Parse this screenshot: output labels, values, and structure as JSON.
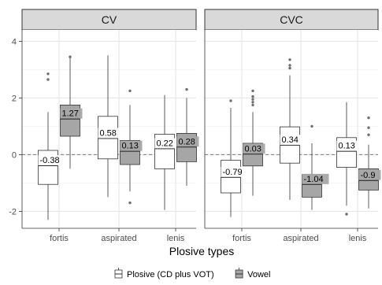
{
  "chart_data": {
    "type": "boxplot",
    "xlabel": "Plosive types",
    "ylabel": "",
    "ylim": [
      -2.6,
      4.4
    ],
    "y_ticks": [
      -2,
      0,
      2,
      4
    ],
    "reference_line_y": 0,
    "grid": true,
    "legend_position": "bottom",
    "categories": [
      "fortis",
      "aspirated",
      "lenis"
    ],
    "legend": [
      {
        "name": "Plosive (CD plus VOT)",
        "fill": "#ffffff"
      },
      {
        "name": "Vowel",
        "fill": "#a6a6a6"
      }
    ],
    "panels": [
      {
        "title": "CV",
        "groups": [
          {
            "category": "fortis",
            "boxes": [
              {
                "series": "Plosive (CD plus VOT)",
                "whisker_low": -2.3,
                "q1": -1.05,
                "median": -0.38,
                "q3": 0.15,
                "whisker_high": 1.5,
                "outliers": [
                  2.65,
                  2.85
                ],
                "label": "-0.38"
              },
              {
                "series": "Vowel",
                "whisker_low": -0.5,
                "q1": 0.65,
                "median": 1.27,
                "q3": 1.75,
                "whisker_high": 3.45,
                "outliers": [
                  3.45
                ],
                "label": "1.27"
              }
            ]
          },
          {
            "category": "aspirated",
            "boxes": [
              {
                "series": "Plosive (CD plus VOT)",
                "whisker_low": -1.5,
                "q1": -0.15,
                "median": 0.58,
                "q3": 1.35,
                "whisker_high": 3.5,
                "outliers": [],
                "label": "0.58"
              },
              {
                "series": "Vowel",
                "whisker_low": -1.3,
                "q1": -0.35,
                "median": 0.13,
                "q3": 0.5,
                "whisker_high": 1.75,
                "outliers": [
                  2.25,
                  -1.7
                ],
                "label": "0.13"
              }
            ]
          },
          {
            "category": "lenis",
            "boxes": [
              {
                "series": "Plosive (CD plus VOT)",
                "whisker_low": -1.95,
                "q1": -0.5,
                "median": 0.22,
                "q3": 0.72,
                "whisker_high": 2.1,
                "outliers": [],
                "label": "0.22"
              },
              {
                "series": "Vowel",
                "whisker_low": -1.1,
                "q1": -0.25,
                "median": 0.28,
                "q3": 0.75,
                "whisker_high": 2.0,
                "outliers": [
                  2.3
                ],
                "label": "0.28"
              }
            ]
          }
        ]
      },
      {
        "title": "CVC",
        "groups": [
          {
            "category": "fortis",
            "boxes": [
              {
                "series": "Plosive (CD plus VOT)",
                "whisker_low": -2.2,
                "q1": -1.35,
                "median": -0.79,
                "q3": -0.2,
                "whisker_high": 1.65,
                "outliers": [
                  1.9
                ],
                "label": "-0.79"
              },
              {
                "series": "Vowel",
                "whisker_low": -1.45,
                "q1": -0.4,
                "median": 0.03,
                "q3": 0.4,
                "whisker_high": 1.5,
                "outliers": [
                  1.75,
                  1.85,
                  1.95,
                  2.05,
                  2.25
                ],
                "label": "0.03"
              }
            ]
          },
          {
            "category": "aspirated",
            "boxes": [
              {
                "series": "Plosive (CD plus VOT)",
                "whisker_low": -1.6,
                "q1": -0.3,
                "median": 0.34,
                "q3": 0.98,
                "whisker_high": 2.8,
                "outliers": [
                  3.05,
                  3.15,
                  3.35
                ],
                "label": "0.34"
              },
              {
                "series": "Vowel",
                "whisker_low": -1.95,
                "q1": -1.5,
                "median": -1.04,
                "q3": -0.7,
                "whisker_high": 0.4,
                "outliers": [
                  1.0
                ],
                "label": "-1.04"
              }
            ]
          },
          {
            "category": "lenis",
            "boxes": [
              {
                "series": "Plosive (CD plus VOT)",
                "whisker_low": -1.8,
                "q1": -0.45,
                "median": 0.13,
                "q3": 0.6,
                "whisker_high": 1.85,
                "outliers": [
                  -2.1
                ],
                "label": "0.13"
              },
              {
                "series": "Vowel",
                "whisker_low": -1.9,
                "q1": -1.25,
                "median": -0.9,
                "q3": -0.5,
                "whisker_high": 0.35,
                "outliers": [
                  0.7,
                  0.95,
                  1.3
                ],
                "label": "-0.9"
              }
            ]
          }
        ]
      }
    ]
  }
}
